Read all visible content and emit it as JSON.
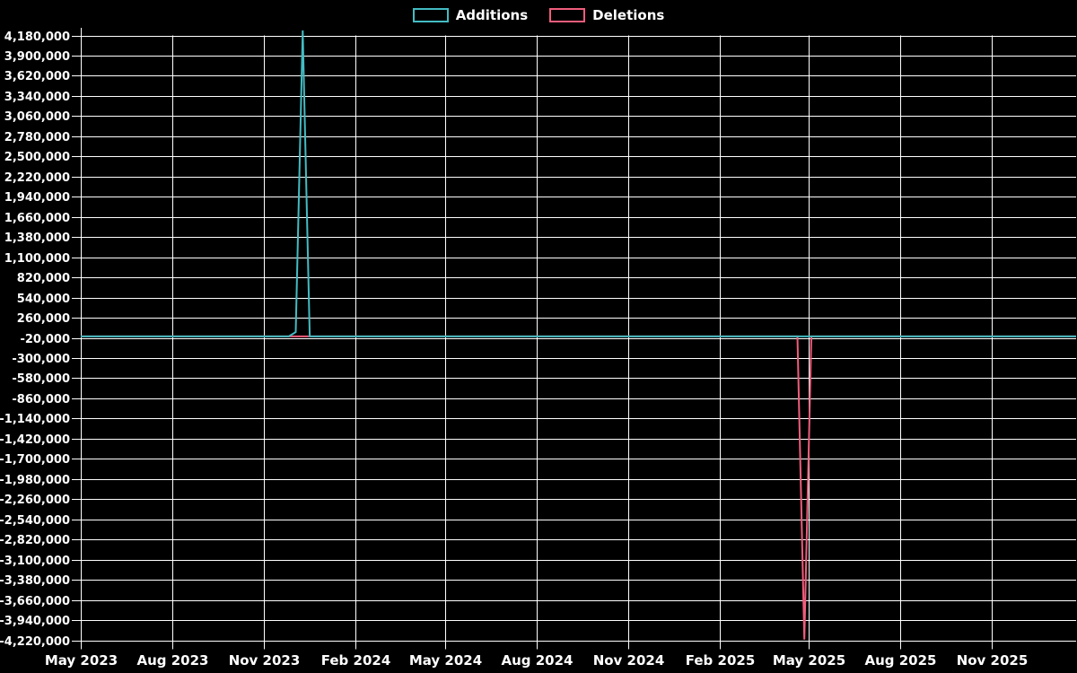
{
  "page": {
    "background": "#000000",
    "text_color": "#ffffff",
    "grid_color": "#ffffff"
  },
  "legend": {
    "items": [
      {
        "label": "Additions",
        "color": "#43bcc3"
      },
      {
        "label": "Deletions",
        "color": "#f05d7c"
      }
    ]
  },
  "chart_data": {
    "type": "line",
    "title": "",
    "xlabel": "",
    "ylabel": "",
    "grid": true,
    "legend_position": "top-center",
    "x_axis": {
      "type": "time",
      "range": [
        "2023-05-01",
        "2026-01-25"
      ],
      "tick_dates": [
        "2023-05-01",
        "2023-08-01",
        "2023-11-01",
        "2024-02-01",
        "2024-05-01",
        "2024-08-01",
        "2024-11-01",
        "2025-02-01",
        "2025-05-01",
        "2025-08-01",
        "2025-11-01"
      ],
      "tick_labels": [
        "May 2023",
        "Aug 2023",
        "Nov 2023",
        "Feb 2024",
        "May 2024",
        "Aug 2024",
        "Nov 2024",
        "Feb 2025",
        "May 2025",
        "Aug 2025",
        "Nov 2025"
      ]
    },
    "y_axis": {
      "min": -4220000,
      "max": 4180000,
      "tick_step": 280000,
      "tick_labels": [
        "4,180,000",
        "3,900,000",
        "3,620,000",
        "3,340,000",
        "3,060,000",
        "2,780,000",
        "2,500,000",
        "2,220,000",
        "1,940,000",
        "1,660,000",
        "1,380,000",
        "1,100,000",
        "820,000",
        "540,000",
        "260,000",
        "-20,000",
        "-300,000",
        "-580,000",
        "-860,000",
        "-1,140,000",
        "-1,420,000",
        "-1,700,000",
        "-1,980,000",
        "-2,260,000",
        "-2,540,000",
        "-2,820,000",
        "-3,100,000",
        "-3,380,000",
        "-3,660,000",
        "-3,940,000",
        "-4,220,000"
      ]
    },
    "series": [
      {
        "name": "Additions",
        "color": "#43bcc3",
        "points": [
          [
            "2023-05-01",
            0
          ],
          [
            "2023-11-26",
            0
          ],
          [
            "2023-12-03",
            60000
          ],
          [
            "2023-12-10",
            4250000
          ],
          [
            "2023-12-17",
            0
          ],
          [
            "2026-01-25",
            0
          ]
        ]
      },
      {
        "name": "Deletions",
        "color": "#f05d7c",
        "points": [
          [
            "2023-05-01",
            0
          ],
          [
            "2025-04-20",
            0
          ],
          [
            "2025-04-27",
            -4210000
          ],
          [
            "2025-05-04",
            0
          ],
          [
            "2026-01-25",
            0
          ]
        ]
      }
    ]
  }
}
